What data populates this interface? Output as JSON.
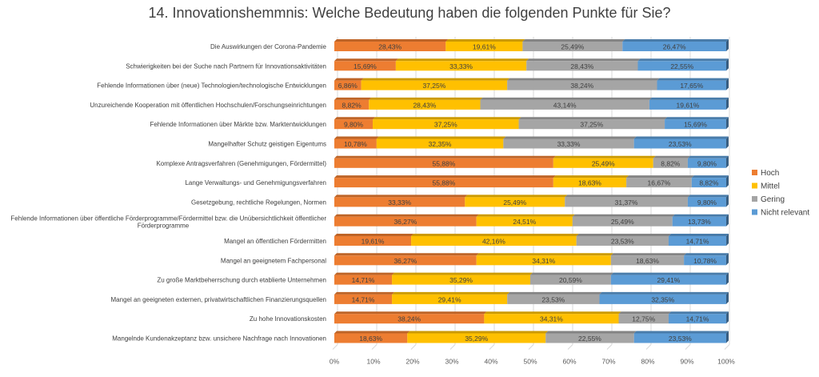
{
  "chart_data": {
    "type": "bar",
    "orientation": "horizontal",
    "stacked": "percent",
    "title": "14. Innovationshemmnis: Welche Bedeutung haben die folgenden Punkte für Sie?",
    "xlabel": "",
    "ylabel": "",
    "xlim": [
      0,
      100
    ],
    "x_ticks": [
      "0%",
      "10%",
      "20%",
      "30%",
      "40%",
      "50%",
      "60%",
      "70%",
      "80%",
      "90%",
      "100%"
    ],
    "grid": true,
    "legend_position": "right",
    "categories": [
      [
        "Die Auswirkungen der Corona-Pandemie"
      ],
      [
        "Schwierigkeiten bei der Suche nach Partnern für Innovationsaktivitäten"
      ],
      [
        "Fehlende Informationen über (neue) Technologien/technologische Entwicklungen"
      ],
      [
        "Unzureichende Kooperation mit öffentlichen Hochschulen/Forschungseinrichtungen"
      ],
      [
        "Fehlende Informationen über Märkte bzw. Marktentwicklungen"
      ],
      [
        "Mangelhafter Schutz geistigen Eigentums"
      ],
      [
        "Komplexe Antragsverfahren (Genehmigungen, Fördermittel)"
      ],
      [
        "Lange Verwaltungs- und Genehmigungsverfahren"
      ],
      [
        "Gesetzgebung, rechtliche Regelungen, Normen"
      ],
      [
        "Fehlende Informationen über öffentliche Förderprogramme/Fördermittel bzw. die Unübersichtlichkeit öffentlicher",
        "Förderprogramme"
      ],
      [
        "Mangel an öffentlichen Fördermitten"
      ],
      [
        "Mangel an geeignetem Fachpersonal"
      ],
      [
        "Zu große Marktbeherrschung durch etablierte Unternehmen"
      ],
      [
        "Mangel an geeigneten externen, privatwirtschaftlichen Finanzierungsquellen"
      ],
      [
        "Zu hohe Innovationskosten"
      ],
      [
        "Mangelnde Kundenakzeptanz bzw. unsichere Nachfrage nach Innovationen"
      ]
    ],
    "series": [
      {
        "name": "Hoch",
        "color": "#ED7D31",
        "values": [
          28.43,
          15.69,
          6.86,
          8.82,
          9.8,
          10.78,
          55.88,
          55.88,
          33.33,
          36.27,
          19.61,
          36.27,
          14.71,
          14.71,
          38.24,
          18.63
        ]
      },
      {
        "name": "Mittel",
        "color": "#FFC000",
        "values": [
          19.61,
          33.33,
          37.25,
          28.43,
          37.25,
          32.35,
          25.49,
          18.63,
          25.49,
          24.51,
          42.16,
          34.31,
          35.29,
          29.41,
          34.31,
          35.29
        ]
      },
      {
        "name": "Gering",
        "color": "#A5A5A5",
        "values": [
          25.49,
          28.43,
          38.24,
          43.14,
          37.25,
          33.33,
          8.82,
          16.67,
          31.37,
          25.49,
          23.53,
          18.63,
          20.59,
          23.53,
          12.75,
          22.55
        ]
      },
      {
        "name": "Nicht relevant",
        "color": "#5B9BD5",
        "values": [
          26.47,
          22.55,
          17.65,
          19.61,
          15.69,
          23.53,
          9.8,
          8.82,
          9.8,
          13.73,
          14.71,
          10.78,
          29.41,
          32.35,
          14.71,
          23.53
        ]
      }
    ]
  }
}
